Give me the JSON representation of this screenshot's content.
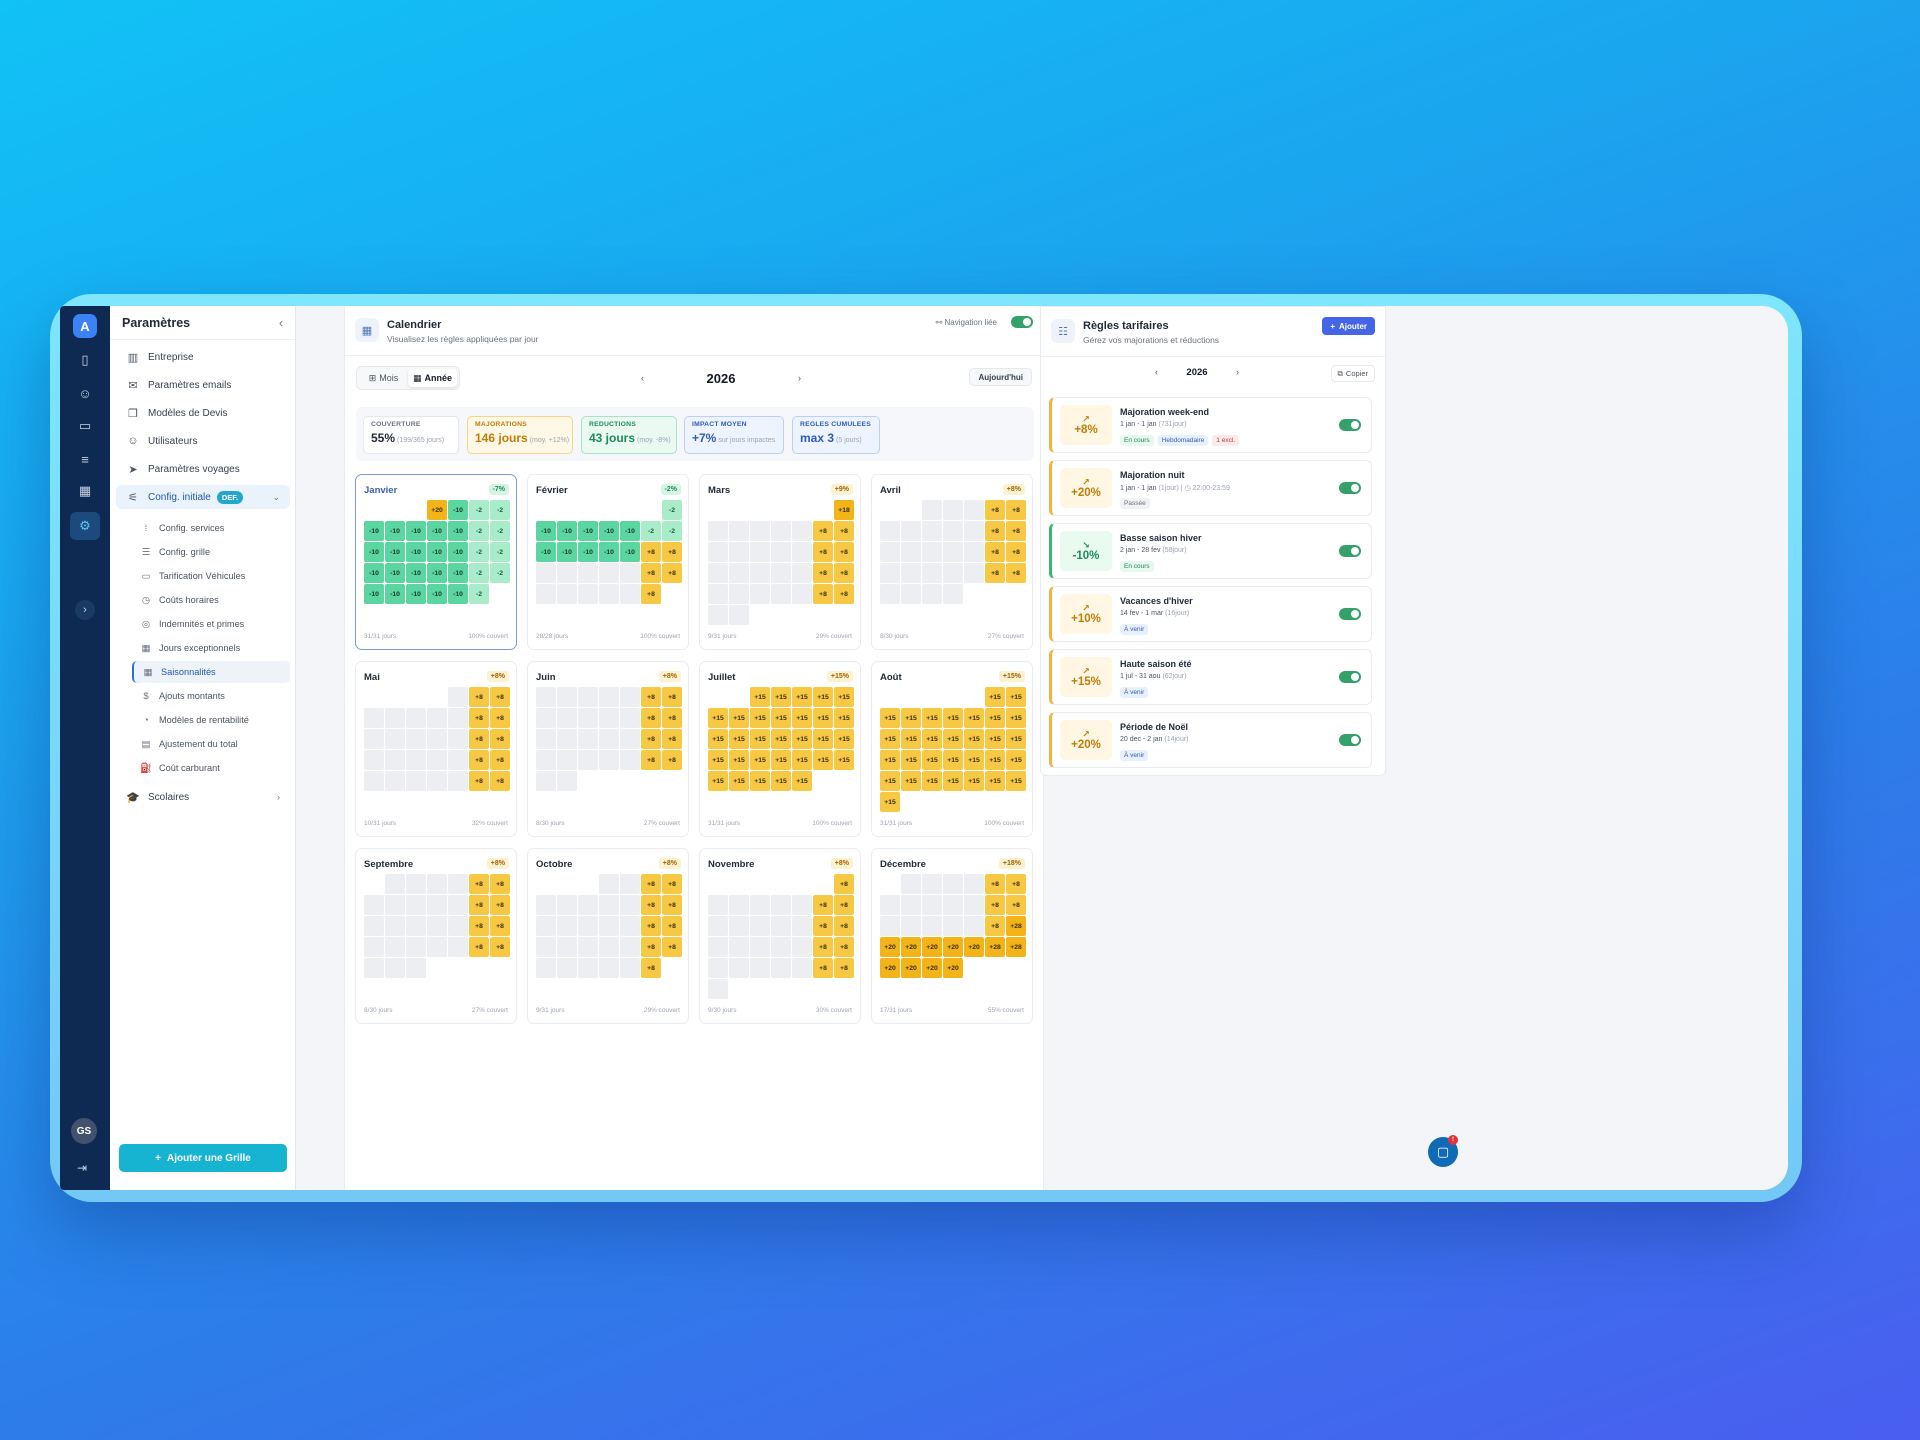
{
  "rail": {
    "logo": "A",
    "avatar": "GS"
  },
  "sidebar": {
    "title": "Paramètres",
    "items": [
      {
        "label": "Entreprise",
        "icon": "building-icon"
      },
      {
        "label": "Paramètres emails",
        "icon": "mail-icon"
      },
      {
        "label": "Modèles de Devis",
        "icon": "documents-icon"
      },
      {
        "label": "Utilisateurs",
        "icon": "users-icon"
      },
      {
        "label": "Paramètres voyages",
        "icon": "navigation-icon"
      }
    ],
    "config": {
      "label": "Config. initiale",
      "badge": "DEF."
    },
    "subitems": [
      {
        "label": "Config. services"
      },
      {
        "label": "Config. grille"
      },
      {
        "label": "Tarification Véhicules"
      },
      {
        "label": "Coûts horaires"
      },
      {
        "label": "Indemnités et primes"
      },
      {
        "label": "Jours exceptionnels"
      },
      {
        "label": "Saisonnalités"
      },
      {
        "label": "Ajouts montants"
      },
      {
        "label": "Modèles de rentabilité"
      },
      {
        "label": "Ajustement du total"
      },
      {
        "label": "Coût carburant"
      }
    ],
    "scolaires": "Scolaires",
    "add_button": "Ajouter une Grille"
  },
  "calendar": {
    "title": "Calendrier",
    "subtitle": "Visualisez les règles appliquées par jour",
    "nav_link": "Navigation liée",
    "view_month": "Mois",
    "view_year": "Année",
    "year": "2026",
    "today": "Aujourd'hui",
    "stats": [
      {
        "label": "COUVERTURE",
        "value": "55%",
        "sub": "(199/365 jours)",
        "cls": ""
      },
      {
        "label": "MAJORATIONS",
        "value": "146 jours",
        "sub": "(moy. +12%)",
        "cls": "y"
      },
      {
        "label": "REDUCTIONS",
        "value": "43 jours",
        "sub": "(moy. -8%)",
        "cls": "g"
      },
      {
        "label": "IMPACT MOYEN",
        "value": "+7%",
        "sub": "sur jours impactes",
        "cls": "b"
      },
      {
        "label": "REGLES CUMULEES",
        "value": "max 3",
        "sub": "(5 jours)",
        "cls": "p"
      }
    ],
    "months": [
      {
        "name": "Janvier",
        "badge": "-7%",
        "neg": true,
        "days": "31/31 jours",
        "cov": "100% couvert",
        "start": 3,
        "len": 31,
        "vals": [
          "+20",
          "-10",
          "-2",
          "-2",
          "-10",
          "-10",
          "-10",
          "-10",
          "-10",
          "-2",
          "-2",
          "-10",
          "-10",
          "-10",
          "-10",
          "-10",
          "-2",
          "-2",
          "-10",
          "-10",
          "-10",
          "-10",
          "-10",
          "-2",
          "-2",
          "-10",
          "-10",
          "-10",
          "-10",
          "-10",
          "-2"
        ]
      },
      {
        "name": "Février",
        "badge": "-2%",
        "neg": true,
        "days": "28/28 jours",
        "cov": "100% couvert",
        "start": 6,
        "len": 28,
        "vals": [
          "-2",
          "-10",
          "-10",
          "-10",
          "-10",
          "-10",
          "-2",
          "-2",
          "-10",
          "-10",
          "-10",
          "-10",
          "-10",
          "+8",
          "+8",
          "",
          "",
          "",
          "",
          "",
          "+8",
          "+8",
          "",
          "",
          "",
          "",
          "",
          "+8"
        ]
      },
      {
        "name": "Mars",
        "badge": "+9%",
        "neg": false,
        "days": "9/31 jours",
        "cov": "29% couvert",
        "start": 6,
        "len": 31,
        "vals": [
          "+18",
          "",
          "",
          "",
          "",
          "",
          "+8",
          "+8",
          "",
          "",
          "",
          "",
          "",
          "+8",
          "+8",
          "",
          "",
          "",
          "",
          "",
          "+8",
          "+8",
          "",
          "",
          "",
          "",
          "",
          "+8",
          "+8",
          "",
          ""
        ]
      },
      {
        "name": "Avril",
        "badge": "+8%",
        "neg": false,
        "days": "8/30 jours",
        "cov": "27% couvert",
        "start": 2,
        "len": 30,
        "vals": [
          "",
          "",
          "",
          "+8",
          "+8",
          "",
          "",
          "",
          "",
          "",
          "+8",
          "+8",
          "",
          "",
          "",
          "",
          "",
          "+8",
          "+8",
          "",
          "",
          "",
          "",
          "",
          "+8",
          "+8",
          "",
          "",
          "",
          ""
        ]
      },
      {
        "name": "Mai",
        "badge": "+8%",
        "neg": false,
        "days": "10/31 jours",
        "cov": "32% couvert",
        "start": 4,
        "len": 31,
        "vals": [
          "",
          "+8",
          "+8",
          "",
          "",
          "",
          "",
          "",
          "+8",
          "+8",
          "",
          "",
          "",
          "",
          "",
          "+8",
          "+8",
          "",
          "",
          "",
          "",
          "",
          "+8",
          "+8",
          "",
          "",
          "",
          "",
          "",
          "+8",
          "+8"
        ]
      },
      {
        "name": "Juin",
        "badge": "+8%",
        "neg": false,
        "days": "8/30 jours",
        "cov": "27% couvert",
        "start": 0,
        "len": 30,
        "vals": [
          "",
          "",
          "",
          "",
          "",
          "+8",
          "+8",
          "",
          "",
          "",
          "",
          "",
          "+8",
          "+8",
          "",
          "",
          "",
          "",
          "",
          "+8",
          "+8",
          "",
          "",
          "",
          "",
          "",
          "+8",
          "+8",
          "",
          ""
        ]
      },
      {
        "name": "Juillet",
        "badge": "+15%",
        "neg": false,
        "days": "31/31 jours",
        "cov": "100% couvert",
        "start": 2,
        "len": 31,
        "vals": [
          "+15",
          "+15",
          "+15",
          "+15",
          "+15",
          "+15",
          "+15",
          "+15",
          "+15",
          "+15",
          "+15",
          "+15",
          "+15",
          "+15",
          "+15",
          "+15",
          "+15",
          "+15",
          "+15",
          "+15",
          "+15",
          "+15",
          "+15",
          "+15",
          "+15",
          "+15",
          "+15",
          "+15",
          "+15",
          "+15",
          "+15"
        ]
      },
      {
        "name": "Août",
        "badge": "+15%",
        "neg": false,
        "days": "31/31 jours",
        "cov": "100% couvert",
        "start": 5,
        "len": 31,
        "vals": [
          "+15",
          "+15",
          "+15",
          "+15",
          "+15",
          "+15",
          "+15",
          "+15",
          "+15",
          "+15",
          "+15",
          "+15",
          "+15",
          "+15",
          "+15",
          "+15",
          "+15",
          "+15",
          "+15",
          "+15",
          "+15",
          "+15",
          "+15",
          "+15",
          "+15",
          "+15",
          "+15",
          "+15",
          "+15",
          "+15",
          "+15"
        ]
      },
      {
        "name": "Septembre",
        "badge": "+8%",
        "neg": false,
        "days": "8/30 jours",
        "cov": "27% couvert",
        "start": 1,
        "len": 30,
        "vals": [
          "",
          "",
          "",
          "",
          "+8",
          "+8",
          "",
          "",
          "",
          "",
          "",
          "+8",
          "+8",
          "",
          "",
          "",
          "",
          "",
          "+8",
          "+8",
          "",
          "",
          "",
          "",
          "",
          "+8",
          "+8",
          "",
          "",
          ""
        ]
      },
      {
        "name": "Octobre",
        "badge": "+8%",
        "neg": false,
        "days": "9/31 jours",
        "cov": "29% couvert",
        "start": 3,
        "len": 31,
        "vals": [
          "",
          "",
          "+8",
          "+8",
          "",
          "",
          "",
          "",
          "",
          "+8",
          "+8",
          "",
          "",
          "",
          "",
          "",
          "+8",
          "+8",
          "",
          "",
          "",
          "",
          "",
          "+8",
          "+8",
          "",
          "",
          "",
          "",
          "",
          "+8"
        ]
      },
      {
        "name": "Novembre",
        "badge": "+8%",
        "neg": false,
        "days": "9/30 jours",
        "cov": "30% couvert",
        "start": 6,
        "len": 30,
        "vals": [
          "+8",
          "",
          "",
          "",
          "",
          "",
          "+8",
          "+8",
          "",
          "",
          "",
          "",
          "",
          "+8",
          "+8",
          "",
          "",
          "",
          "",
          "",
          "+8",
          "+8",
          "",
          "",
          "",
          "",
          "",
          "+8",
          "+8",
          ""
        ]
      },
      {
        "name": "Décembre",
        "badge": "+18%",
        "neg": false,
        "days": "17/31 jours",
        "cov": "55% couvert",
        "start": 1,
        "len": 31,
        "vals": [
          "",
          "",
          "",
          "",
          "+8",
          "+8",
          "",
          "",
          "",
          "",
          "",
          "+8",
          "+8",
          "",
          "",
          "",
          "",
          "",
          "+8",
          "+28",
          "+20",
          "+20",
          "+20",
          "+20",
          "+20",
          "+28",
          "+28",
          "+20",
          "+20",
          "+20",
          "+20"
        ]
      }
    ]
  },
  "rules": {
    "title": "Règles tarifaires",
    "subtitle": "Gérez vos majorations et réductions",
    "add": "Ajouter",
    "year": "2026",
    "copy": "Copier",
    "list": [
      {
        "pct": "+8%",
        "name": "Majoration week-end",
        "dates": "1 jan - 1 jan",
        "dur": "(731jour)",
        "extra": "",
        "green": false,
        "tags": [
          {
            "t": "En cours",
            "c": "g"
          },
          {
            "t": "Hebdomadaire",
            "c": "b"
          },
          {
            "t": "1 excl.",
            "c": "r"
          }
        ]
      },
      {
        "pct": "+20%",
        "name": "Majoration nuit",
        "dates": "1 jan - 1 jan",
        "dur": "(1jour)",
        "extra": "|  ◷ 22:00-23:59",
        "green": false,
        "tags": [
          {
            "t": "Passée",
            "c": "gr"
          }
        ]
      },
      {
        "pct": "-10%",
        "name": "Basse saison hiver",
        "dates": "2 jan - 28 fev",
        "dur": "(58jour)",
        "extra": "",
        "green": true,
        "tags": [
          {
            "t": "En cours",
            "c": "g"
          }
        ]
      },
      {
        "pct": "+10%",
        "name": "Vacances d'hiver",
        "dates": "14 fev - 1 mar",
        "dur": "(16jour)",
        "extra": "",
        "green": false,
        "tags": [
          {
            "t": "À venir",
            "c": "b"
          }
        ]
      },
      {
        "pct": "+15%",
        "name": "Haute saison été",
        "dates": "1 jul - 31 aou",
        "dur": "(62jour)",
        "extra": "",
        "green": false,
        "tags": [
          {
            "t": "À venir",
            "c": "b"
          }
        ]
      },
      {
        "pct": "+20%",
        "name": "Période de Noël",
        "dates": "20 dec - 2 jan",
        "dur": "(14jour)",
        "extra": "",
        "green": false,
        "tags": [
          {
            "t": "À venir",
            "c": "b"
          }
        ]
      }
    ]
  },
  "colors": {
    "accent": "#4466e6",
    "sidebar_dark": "#0f2a52",
    "majoration": "#f7c843",
    "reduction": "#5bd6a0"
  }
}
